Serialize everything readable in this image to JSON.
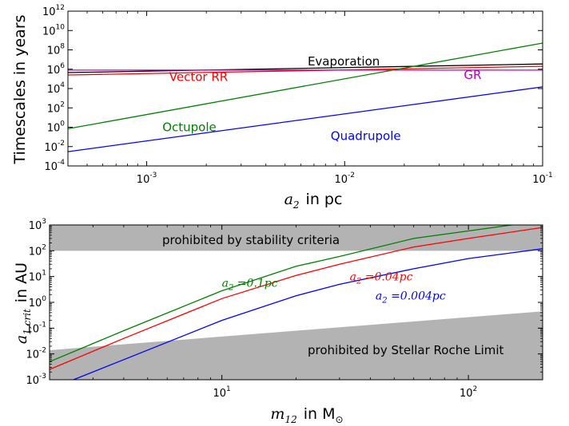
{
  "chart_data": [
    {
      "type": "line",
      "xscale": "log",
      "yscale": "log",
      "xlim": [
        0.0004,
        0.1
      ],
      "ylim": [
        0.0001,
        1000000000000
      ],
      "xlabel": "in pc",
      "xlabel_math": "a",
      "xlabel_sub": "2",
      "ylabel": "Timescales in years",
      "x_ticks": [
        {
          "value": 0.001,
          "base": "10",
          "exp": "-3"
        },
        {
          "value": 0.01,
          "base": "10",
          "exp": "-2"
        },
        {
          "value": 0.1,
          "base": "10",
          "exp": "-1"
        }
      ],
      "y_ticks": [
        {
          "value": 0.0001,
          "base": "10",
          "exp": "-4"
        },
        {
          "value": 0.01,
          "base": "10",
          "exp": "-2"
        },
        {
          "value": 1,
          "base": "10",
          "exp": "0"
        },
        {
          "value": 100,
          "base": "10",
          "exp": "2"
        },
        {
          "value": 10000,
          "base": "10",
          "exp": "4"
        },
        {
          "value": 1000000,
          "base": "10",
          "exp": "6"
        },
        {
          "value": 100000000,
          "base": "10",
          "exp": "8"
        },
        {
          "value": 10000000000,
          "base": "10",
          "exp": "10"
        },
        {
          "value": 1000000000000,
          "base": "10",
          "exp": "12"
        }
      ],
      "series": [
        {
          "name": "Evaporation",
          "color": "#000000",
          "x": [
            0.0004,
            0.1
          ],
          "y": [
            450000,
            3500000
          ]
        },
        {
          "name": "Vector RR",
          "color": "#ff0000",
          "x": [
            0.0004,
            0.1
          ],
          "y": [
            250000,
            2000000
          ]
        },
        {
          "name": "GR",
          "color": "#bf00bf",
          "x": [
            0.0004,
            0.1
          ],
          "y": [
            800000,
            800000
          ]
        },
        {
          "name": "Octupole",
          "color": "#008000",
          "x": [
            0.0004,
            0.1
          ],
          "y": [
            0.7,
            500000000
          ]
        },
        {
          "name": "Quadrupole",
          "color": "#0000ff",
          "x": [
            0.0004,
            0.1
          ],
          "y": [
            0.003,
            15000
          ]
        }
      ],
      "annotations": [
        {
          "text": "Evaporation",
          "color": "#000000",
          "x": 0.0065,
          "y": 2500000
        },
        {
          "text": "Vector RR",
          "color": "#ff0000",
          "x": 0.0013,
          "y": 60000
        },
        {
          "text": "GR",
          "color": "#bf00bf",
          "x": 0.04,
          "y": 100000
        },
        {
          "text": "Octupole",
          "color": "#008000",
          "x": 0.0012,
          "y": 0.4
        },
        {
          "text": "Quadrupole",
          "color": "#0000ff",
          "x": 0.0085,
          "y": 0.05
        }
      ]
    },
    {
      "type": "line",
      "xscale": "log",
      "yscale": "log",
      "xlim": [
        2,
        200
      ],
      "ylim": [
        0.001,
        1000
      ],
      "xlabel": "in M",
      "xlabel_math": "m",
      "xlabel_sub": "12",
      "xlabel_sub_sym": "⊙",
      "ylabel_math": "a",
      "ylabel_sub": "1,crit",
      "ylabel": "in AU",
      "x_ticks": [
        {
          "value": 10,
          "base": "10",
          "exp": "1"
        },
        {
          "value": 100,
          "base": "10",
          "exp": "2"
        }
      ],
      "y_ticks": [
        {
          "value": 0.001,
          "base": "10",
          "exp": "-3"
        },
        {
          "value": 0.01,
          "base": "10",
          "exp": "-2"
        },
        {
          "value": 0.1,
          "base": "10",
          "exp": "-1"
        },
        {
          "value": 1,
          "base": "10",
          "exp": "0"
        },
        {
          "value": 10,
          "base": "10",
          "exp": "1"
        },
        {
          "value": 100,
          "base": "10",
          "exp": "2"
        },
        {
          "value": 1000,
          "base": "10",
          "exp": "3"
        }
      ],
      "regions": [
        {
          "label": "prohibited by stability criteria",
          "color": "#b3b3b3",
          "x": [
            2,
            200
          ],
          "y_low": [
            100,
            100
          ],
          "y_high": [
            1000,
            1000
          ]
        },
        {
          "label": "prohibited by Stellar Roche Limit",
          "color": "#b3b3b3",
          "x": [
            2,
            200
          ],
          "y_low": [
            0.001,
            0.001
          ],
          "y_high": [
            0.014,
            0.45
          ]
        }
      ],
      "series": [
        {
          "name": "a2 = 0.1pc",
          "color": "#008000",
          "x": [
            2,
            4,
            10,
            20,
            30,
            60,
            150,
            200
          ],
          "y": [
            0.005,
            0.08,
            2.8,
            25,
            60,
            300,
            1000,
            1200
          ]
        },
        {
          "name": "a2 = 0.04pc",
          "color": "#ff0000",
          "x": [
            2,
            4,
            10,
            20,
            30,
            60,
            100,
            200
          ],
          "y": [
            0.0025,
            0.04,
            1.4,
            11,
            30,
            140,
            300,
            800
          ]
        },
        {
          "name": "a2 = 0.004pc",
          "color": "#0000ff",
          "x": [
            2.5,
            4,
            10,
            20,
            30,
            60,
            100,
            200
          ],
          "y": [
            0.001,
            0.006,
            0.2,
            1.8,
            5,
            20,
            50,
            120
          ]
        }
      ],
      "annotations": [
        {
          "math": "a",
          "sub": "2",
          "rest": " =0.1pc",
          "color": "#008000",
          "x": 10,
          "y": 4
        },
        {
          "math": "a",
          "sub": "2",
          "rest": " =0.04pc",
          "color": "#ff0000",
          "x": 33,
          "y": 7
        },
        {
          "math": "a",
          "sub": "2",
          "rest": " =0.004pc",
          "color": "#0000ff",
          "x": 42,
          "y": 1.3
        }
      ]
    }
  ]
}
